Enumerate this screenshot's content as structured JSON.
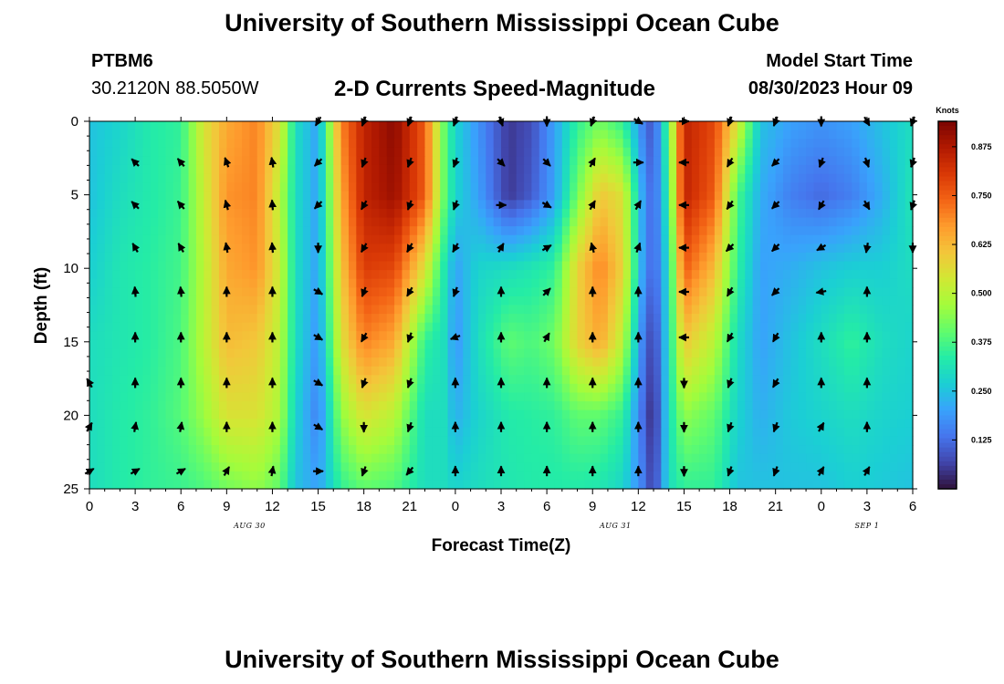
{
  "header": {
    "title": "University of Southern Mississippi Ocean Cube",
    "station_id": "PTBM6",
    "station_coords": "30.2120N  88.5050W",
    "subtitle": "2-D Currents Speed-Magnitude",
    "model_start_label": "Model Start Time",
    "model_start_time": "08/30/2023 Hour 09"
  },
  "footer": {
    "title": "University of Southern Mississippi Ocean Cube"
  },
  "chart_data": {
    "type": "heatmap",
    "title": "2-D Currents Speed-Magnitude",
    "xlabel": "Forecast Time(Z)",
    "ylabel": "Depth (ft)",
    "x_unit": "hours from 2023-08-30 00Z",
    "xlim": [
      0,
      54
    ],
    "ylim": [
      0,
      25
    ],
    "x_ticks": [
      0,
      3,
      6,
      9,
      12,
      15,
      18,
      21,
      24,
      27,
      30,
      33,
      36,
      39,
      42,
      45,
      48,
      51,
      54
    ],
    "x_tick_labels": [
      "0",
      "3",
      "6",
      "9",
      "12",
      "15",
      "18",
      "21",
      "0",
      "3",
      "6",
      "9",
      "12",
      "15",
      "18",
      "21",
      "0",
      "3",
      "6"
    ],
    "y_ticks": [
      0,
      5,
      10,
      15,
      20,
      25
    ],
    "y_tick_labels": [
      "0",
      "5",
      "10",
      "15",
      "20",
      "25"
    ],
    "date_labels": [
      {
        "x": 10.5,
        "label": "AUG 30"
      },
      {
        "x": 34.5,
        "label": "AUG 31"
      },
      {
        "x": 51,
        "label": "SEP 1"
      }
    ],
    "colorbar": {
      "title": "Knots",
      "min": 0,
      "max": 0.94,
      "ticks": [
        0.125,
        0.25,
        0.375,
        0.5,
        0.625,
        0.75,
        0.875
      ],
      "tick_labels": [
        "0.125",
        "0.250",
        "0.375",
        "0.500",
        "0.625",
        "0.750",
        "0.875"
      ]
    },
    "colormap": [
      "#30123b",
      "#4145ab",
      "#4675ed",
      "#39a2fc",
      "#1bcfd4",
      "#24eca6",
      "#61fc6c",
      "#a4fc3b",
      "#d1e834",
      "#f3c63a",
      "#fe9b2d",
      "#f36315",
      "#d93806",
      "#b11901",
      "#7a0402"
    ],
    "speed_profiles": [
      {
        "x": 0,
        "values": [
          0.25,
          0.25,
          0.27,
          0.3,
          0.3,
          0.3
        ]
      },
      {
        "x": 2,
        "values": [
          0.28,
          0.3,
          0.32,
          0.32,
          0.33,
          0.33
        ]
      },
      {
        "x": 4,
        "values": [
          0.33,
          0.33,
          0.34,
          0.34,
          0.35,
          0.35
        ]
      },
      {
        "x": 6,
        "values": [
          0.35,
          0.36,
          0.37,
          0.38,
          0.39,
          0.36
        ]
      },
      {
        "x": 7.5,
        "values": [
          0.55,
          0.52,
          0.5,
          0.5,
          0.46,
          0.38
        ]
      },
      {
        "x": 9,
        "values": [
          0.65,
          0.68,
          0.65,
          0.62,
          0.55,
          0.42
        ]
      },
      {
        "x": 11,
        "values": [
          0.7,
          0.7,
          0.68,
          0.6,
          0.55,
          0.45
        ]
      },
      {
        "x": 12.5,
        "values": [
          0.55,
          0.5,
          0.52,
          0.5,
          0.48,
          0.4
        ]
      },
      {
        "x": 13.5,
        "values": [
          0.3,
          0.3,
          0.3,
          0.3,
          0.28,
          0.25
        ]
      },
      {
        "x": 15,
        "values": [
          0.2,
          0.2,
          0.2,
          0.18,
          0.15,
          0.2
        ]
      },
      {
        "x": 16.5,
        "values": [
          0.7,
          0.65,
          0.6,
          0.55,
          0.45,
          0.35
        ]
      },
      {
        "x": 18,
        "values": [
          0.85,
          0.85,
          0.8,
          0.7,
          0.55,
          0.4
        ]
      },
      {
        "x": 20,
        "values": [
          0.92,
          0.9,
          0.78,
          0.65,
          0.5,
          0.38
        ]
      },
      {
        "x": 22,
        "values": [
          0.75,
          0.75,
          0.55,
          0.35,
          0.3,
          0.3
        ]
      },
      {
        "x": 23.3,
        "values": [
          0.4,
          0.4,
          0.32,
          0.3,
          0.3,
          0.3
        ]
      },
      {
        "x": 24,
        "values": [
          0.28,
          0.28,
          0.2,
          0.18,
          0.22,
          0.28
        ]
      },
      {
        "x": 25.5,
        "values": [
          0.18,
          0.2,
          0.28,
          0.3,
          0.28,
          0.3
        ]
      },
      {
        "x": 27.5,
        "values": [
          0.05,
          0.05,
          0.3,
          0.4,
          0.33,
          0.32
        ]
      },
      {
        "x": 29,
        "values": [
          0.08,
          0.1,
          0.32,
          0.38,
          0.34,
          0.33
        ]
      },
      {
        "x": 30.5,
        "values": [
          0.2,
          0.2,
          0.35,
          0.42,
          0.35,
          0.33
        ]
      },
      {
        "x": 32,
        "values": [
          0.35,
          0.42,
          0.58,
          0.58,
          0.4,
          0.33
        ]
      },
      {
        "x": 33.5,
        "values": [
          0.42,
          0.6,
          0.7,
          0.65,
          0.4,
          0.32
        ]
      },
      {
        "x": 35,
        "values": [
          0.35,
          0.55,
          0.58,
          0.5,
          0.35,
          0.28
        ]
      },
      {
        "x": 36.3,
        "values": [
          0.15,
          0.2,
          0.2,
          0.15,
          0.12,
          0.15
        ]
      },
      {
        "x": 37,
        "values": [
          0.08,
          0.1,
          0.1,
          0.05,
          0.02,
          0.05
        ]
      },
      {
        "x": 38,
        "values": [
          0.4,
          0.35,
          0.3,
          0.3,
          0.3,
          0.3
        ]
      },
      {
        "x": 39,
        "values": [
          0.85,
          0.85,
          0.75,
          0.6,
          0.45,
          0.35
        ]
      },
      {
        "x": 41,
        "values": [
          0.78,
          0.75,
          0.62,
          0.5,
          0.4,
          0.35
        ]
      },
      {
        "x": 42.5,
        "values": [
          0.55,
          0.38,
          0.35,
          0.3,
          0.28,
          0.25
        ]
      },
      {
        "x": 44,
        "values": [
          0.25,
          0.22,
          0.2,
          0.2,
          0.22,
          0.25
        ]
      },
      {
        "x": 46,
        "values": [
          0.2,
          0.15,
          0.22,
          0.25,
          0.26,
          0.25
        ]
      },
      {
        "x": 48,
        "values": [
          0.18,
          0.12,
          0.25,
          0.3,
          0.28,
          0.25
        ]
      },
      {
        "x": 50,
        "values": [
          0.2,
          0.15,
          0.27,
          0.35,
          0.3,
          0.27
        ]
      },
      {
        "x": 52,
        "values": [
          0.25,
          0.22,
          0.27,
          0.3,
          0.28,
          0.26
        ]
      },
      {
        "x": 54,
        "values": [
          0.3,
          0.32,
          0.3,
          0.28,
          0.27,
          0.25
        ]
      }
    ],
    "profile_depths": [
      0,
      5,
      10,
      15,
      20,
      25
    ],
    "vectors": {
      "x": [
        0,
        3,
        6,
        9,
        12,
        15,
        18,
        21,
        24,
        27,
        30,
        33,
        36,
        39,
        42,
        45,
        48,
        51,
        54
      ],
      "depths": [
        0,
        2.8,
        5.7,
        8.6,
        11.6,
        14.7,
        17.8,
        20.8,
        23.8
      ],
      "directions_deg": [
        [
          null,
          null,
          null,
          null,
          null,
          210,
          200,
          200,
          200,
          160,
          180,
          200,
          120,
          90,
          200,
          200,
          180,
          150,
          200
        ],
        [
          null,
          315,
          320,
          340,
          350,
          225,
          200,
          200,
          200,
          135,
          135,
          30,
          90,
          270,
          210,
          225,
          200,
          160,
          200
        ],
        [
          null,
          315,
          320,
          345,
          355,
          225,
          210,
          200,
          200,
          90,
          120,
          30,
          30,
          270,
          215,
          225,
          210,
          150,
          200
        ],
        [
          null,
          330,
          330,
          350,
          355,
          180,
          210,
          210,
          210,
          30,
          60,
          345,
          20,
          270,
          225,
          225,
          240,
          190,
          180
        ],
        [
          null,
          355,
          355,
          0,
          0,
          120,
          200,
          210,
          200,
          0,
          45,
          0,
          0,
          270,
          210,
          225,
          260,
          0,
          null
        ],
        [
          null,
          0,
          0,
          0,
          0,
          120,
          210,
          200,
          250,
          0,
          30,
          0,
          0,
          270,
          210,
          210,
          0,
          0,
          null
        ],
        [
          330,
          0,
          0,
          0,
          0,
          120,
          200,
          200,
          0,
          0,
          0,
          0,
          0,
          180,
          200,
          210,
          0,
          0,
          null
        ],
        [
          30,
          10,
          10,
          0,
          0,
          120,
          180,
          200,
          0,
          0,
          0,
          0,
          0,
          180,
          200,
          200,
          30,
          0,
          null
        ],
        [
          60,
          60,
          60,
          30,
          10,
          90,
          200,
          220,
          0,
          0,
          0,
          0,
          0,
          180,
          200,
          200,
          30,
          30,
          null
        ]
      ]
    }
  }
}
